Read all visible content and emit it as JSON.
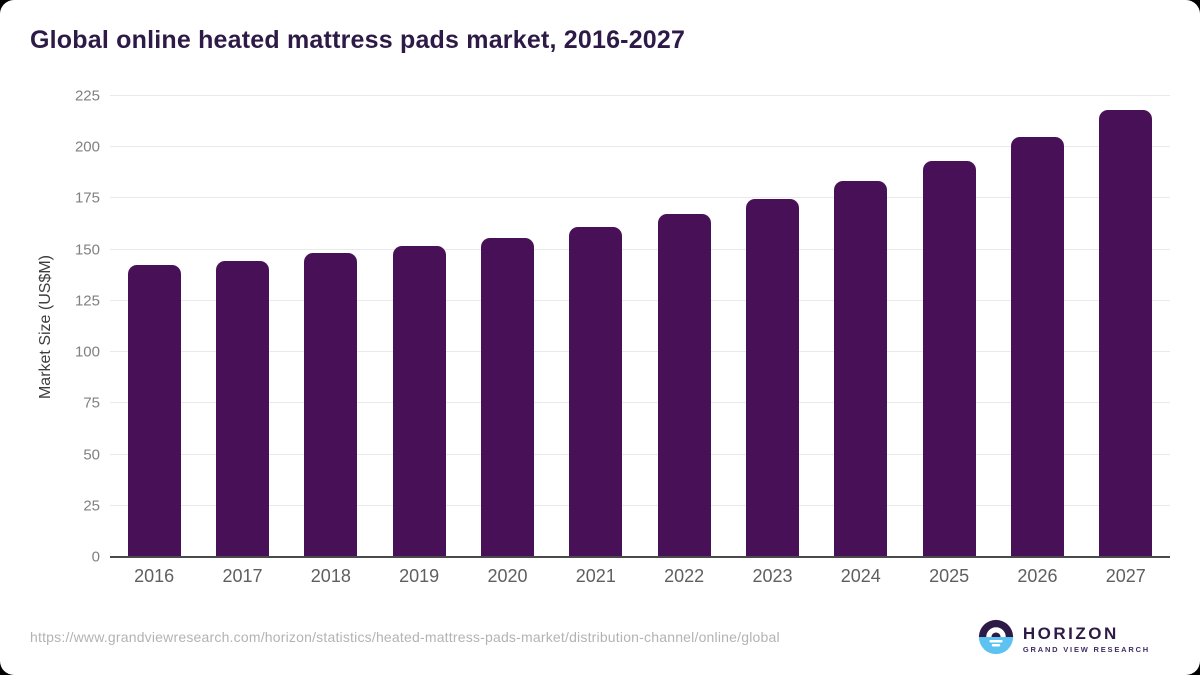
{
  "card": {
    "title": "Global online heated mattress pads market, 2016-2027",
    "source_url": "https://www.grandviewresearch.com/horizon/statistics/heated-mattress-pads-market/distribution-channel/online/global",
    "logo": {
      "name": "HORIZON",
      "subtitle": "GRAND VIEW RESEARCH",
      "circle_top_color": "#2e1a47",
      "circle_bottom_color": "#5bc2f2"
    }
  },
  "chart_data": {
    "type": "bar",
    "title": "Global online heated mattress pads market, 2016-2027",
    "categories": [
      "2016",
      "2017",
      "2018",
      "2019",
      "2020",
      "2021",
      "2022",
      "2023",
      "2024",
      "2025",
      "2026",
      "2027"
    ],
    "values": [
      142.7,
      144.7,
      148.2,
      151.6,
      155.8,
      161.0,
      167.2,
      174.5,
      183.4,
      193.5,
      205.2,
      218.0
    ],
    "xlabel": "",
    "ylabel": "Market Size (US$M)",
    "ylim": [
      0,
      225
    ],
    "yticks": [
      0,
      25,
      50,
      75,
      100,
      125,
      150,
      175,
      200,
      225
    ],
    "grid": true,
    "legend_position": "none",
    "bar_color": "#481157",
    "title_color": "#2e1a47",
    "gridline_color": "#e9e9e9",
    "axis_line_color": "#4a4a4a",
    "tick_label_color": "#808080",
    "x_label_color": "#5f5f5f"
  }
}
